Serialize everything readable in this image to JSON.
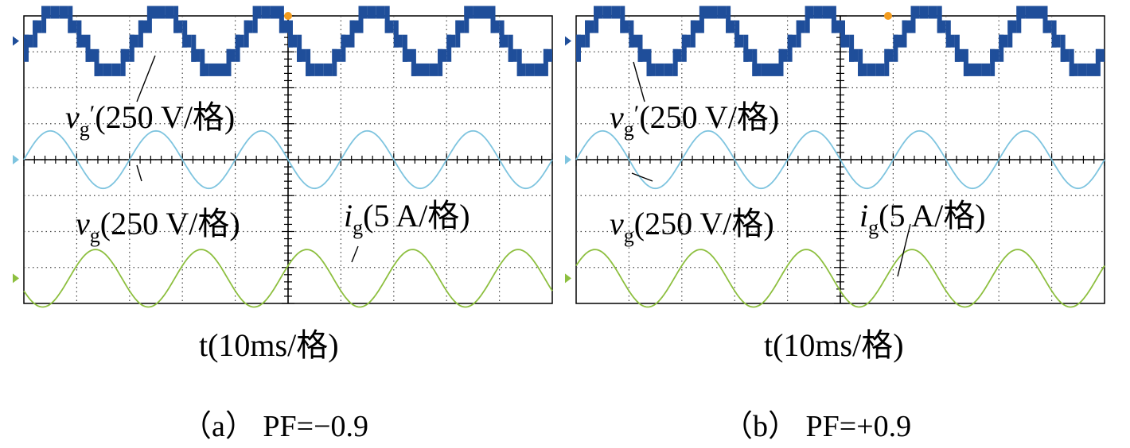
{
  "chart_data": [
    {
      "type": "line",
      "caption": "（a） PF=−0.9",
      "xlabel": "t(10ms/格)",
      "x_div_ms": 10,
      "x_range_ms": [
        0,
        100
      ],
      "divisions": {
        "x": 10,
        "y": 8
      },
      "grid": true,
      "colors": {
        "vg_prime": "#1f4e9a",
        "vg": "#7ec4df",
        "ig": "#8dbf3f"
      },
      "series": [
        {
          "name": "v'g",
          "label_symbol": "v",
          "label_sub": "g",
          "label_prime": "′",
          "label_scale": "(250 V/格)",
          "waveform": "multilevel",
          "period_ms": 20,
          "amplitude_div": 0.8,
          "offset_div": -3.3,
          "phase_deg": 0
        },
        {
          "name": "vg",
          "label_symbol": "v",
          "label_sub": "g",
          "label_prime": "",
          "label_scale": "(250 V/格)",
          "waveform": "sine",
          "period_ms": 20,
          "amplitude_div": 0.8,
          "offset_div": 0,
          "phase_deg": 0
        },
        {
          "name": "ig",
          "label_symbol": "i",
          "label_sub": "g",
          "label_prime": "",
          "label_scale": "(5 A/格)",
          "waveform": "sine",
          "period_ms": 20,
          "amplitude_div": 0.8,
          "offset_div": 3.3,
          "phase_deg": -154
        }
      ]
    },
    {
      "type": "line",
      "caption": "（b） PF=+0.9",
      "xlabel": "t(10ms/格)",
      "x_div_ms": 10,
      "x_range_ms": [
        0,
        100
      ],
      "divisions": {
        "x": 10,
        "y": 8
      },
      "grid": true,
      "colors": {
        "vg_prime": "#1f4e9a",
        "vg": "#7ec4df",
        "ig": "#8dbf3f"
      },
      "series": [
        {
          "name": "v'g",
          "label_symbol": "v",
          "label_sub": "g",
          "label_prime": "′",
          "label_scale": "(250 V/格)",
          "waveform": "multilevel",
          "period_ms": 20,
          "amplitude_div": 0.8,
          "offset_div": -3.3,
          "phase_deg": 0
        },
        {
          "name": "vg",
          "label_symbol": "v",
          "label_sub": "g",
          "label_prime": "",
          "label_scale": "(250 V/格)",
          "waveform": "sine",
          "period_ms": 20,
          "amplitude_div": 0.8,
          "offset_div": 0,
          "phase_deg": 0
        },
        {
          "name": "ig",
          "label_symbol": "i",
          "label_sub": "g",
          "label_prime": "",
          "label_scale": "(5 A/格)",
          "waveform": "sine",
          "period_ms": 20,
          "amplitude_div": 0.8,
          "offset_div": 3.3,
          "phase_deg": 26
        }
      ]
    }
  ]
}
